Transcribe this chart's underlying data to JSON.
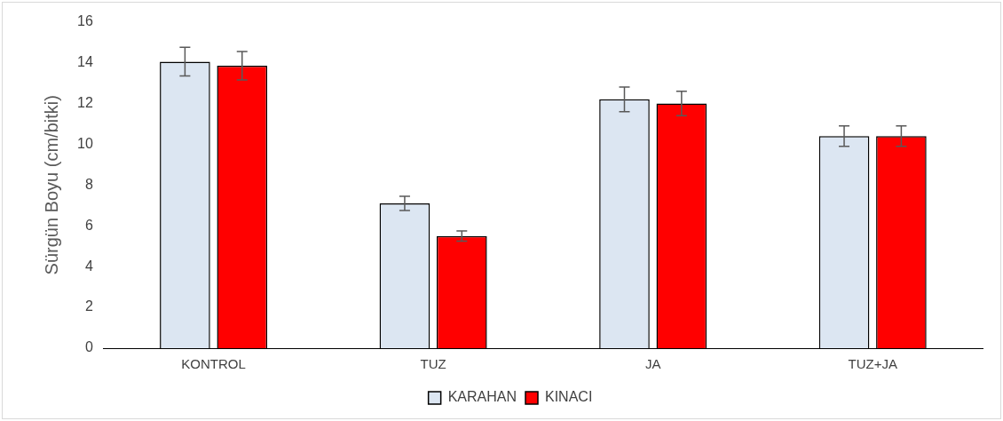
{
  "chart_data": {
    "type": "bar",
    "ylabel": "Sürgün Boyu (cm/bitki)",
    "categories": [
      "KONTROL",
      "TUZ",
      "JA",
      "TUZ+JA"
    ],
    "series": [
      {
        "name": "KARAHAN",
        "color": "#dce6f2",
        "values": [
          14.05,
          7.1,
          12.2,
          10.4
        ],
        "errors": [
          0.7,
          0.35,
          0.6,
          0.5
        ]
      },
      {
        "name": "KINACI",
        "color": "#ff0000",
        "values": [
          13.85,
          5.5,
          12.0,
          10.4
        ],
        "errors": [
          0.7,
          0.25,
          0.6,
          0.5
        ]
      }
    ],
    "ylim": [
      0,
      16
    ],
    "yticks": [
      0,
      2,
      4,
      6,
      8,
      10,
      12,
      14,
      16
    ],
    "grid": false,
    "legend": "bottom"
  }
}
